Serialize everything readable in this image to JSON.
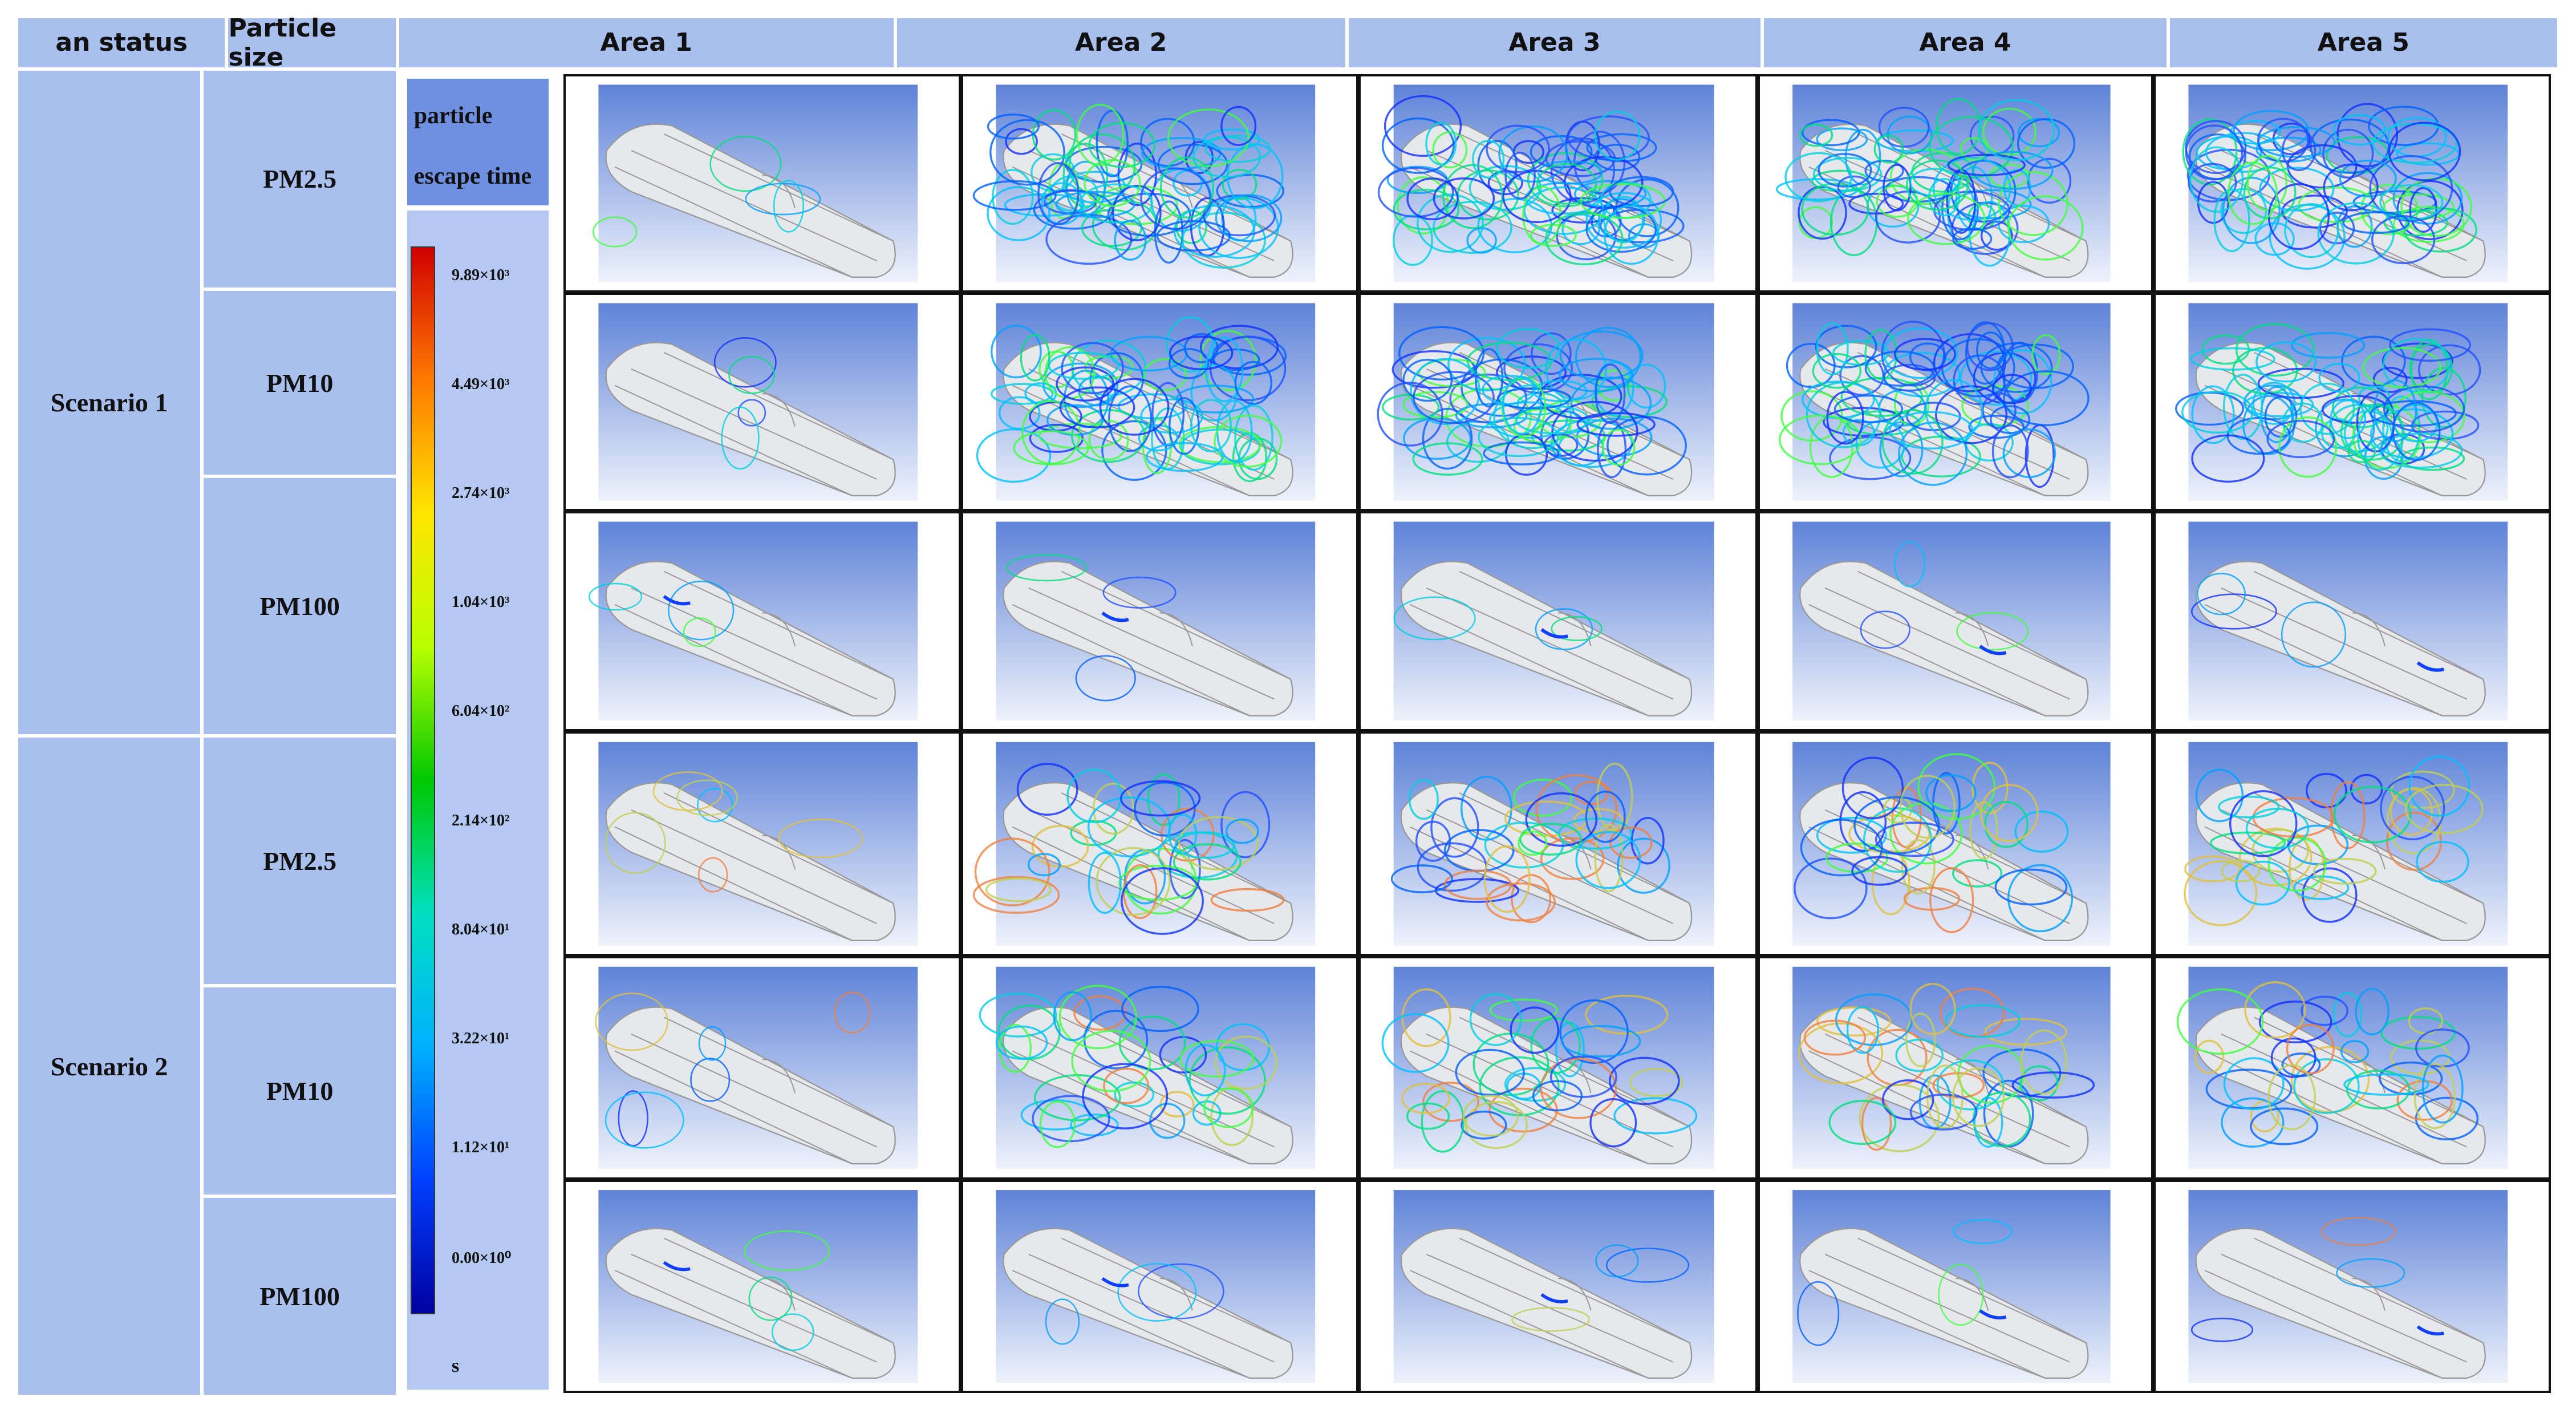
{
  "header": {
    "columns": [
      "an status",
      "Particle size",
      "Area 1",
      "Area 2",
      "Area 3",
      "Area 4",
      "Area 5"
    ]
  },
  "rows": [
    {
      "scenario": "Scenario 1",
      "sizes": [
        "PM2.5",
        "PM10",
        "PM100"
      ]
    },
    {
      "scenario": "Scenario 2",
      "sizes": [
        "PM2.5",
        "PM10",
        "PM100"
      ]
    }
  ],
  "legend": {
    "title_lines": [
      "particle",
      "escape time"
    ],
    "ticks": [
      "9.89×10³",
      "4.49×10³",
      "2.74×10³",
      "1.04×10³",
      "6.04×10²",
      "2.14×10²",
      "8.04×10¹",
      "3.22×10¹",
      "1.12×10¹",
      "0.00×10⁰"
    ],
    "unit": "s"
  }
}
